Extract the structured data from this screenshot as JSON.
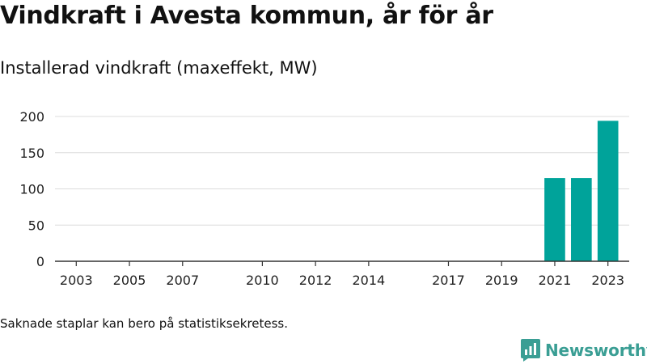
{
  "header": {
    "title": "Vindkraft i Avesta kommun, år för år",
    "subtitle": "Installerad vindkraft (maxeffekt, MW)"
  },
  "footnote": "Saknade staplar kan bero på statistiksekretess.",
  "brand": {
    "name": "Newsworthy",
    "icon": "newsworthy-logo-icon"
  },
  "chart_data": {
    "type": "bar",
    "title": "Installerad vindkraft (maxeffekt, MW)",
    "xlabel": "",
    "ylabel": "",
    "x_range": [
      2002.2,
      2023.8
    ],
    "ylim": [
      0,
      200
    ],
    "y_ticks": [
      0,
      50,
      100,
      150,
      200
    ],
    "x_ticks": [
      2003,
      2005,
      2007,
      2010,
      2012,
      2014,
      2017,
      2019,
      2021,
      2023
    ],
    "grid": true,
    "legend": "none",
    "bar_color": "#00a39a",
    "series": [
      {
        "x": [
          2021,
          2022,
          2023
        ],
        "values": [
          115,
          115,
          194
        ]
      }
    ]
  }
}
